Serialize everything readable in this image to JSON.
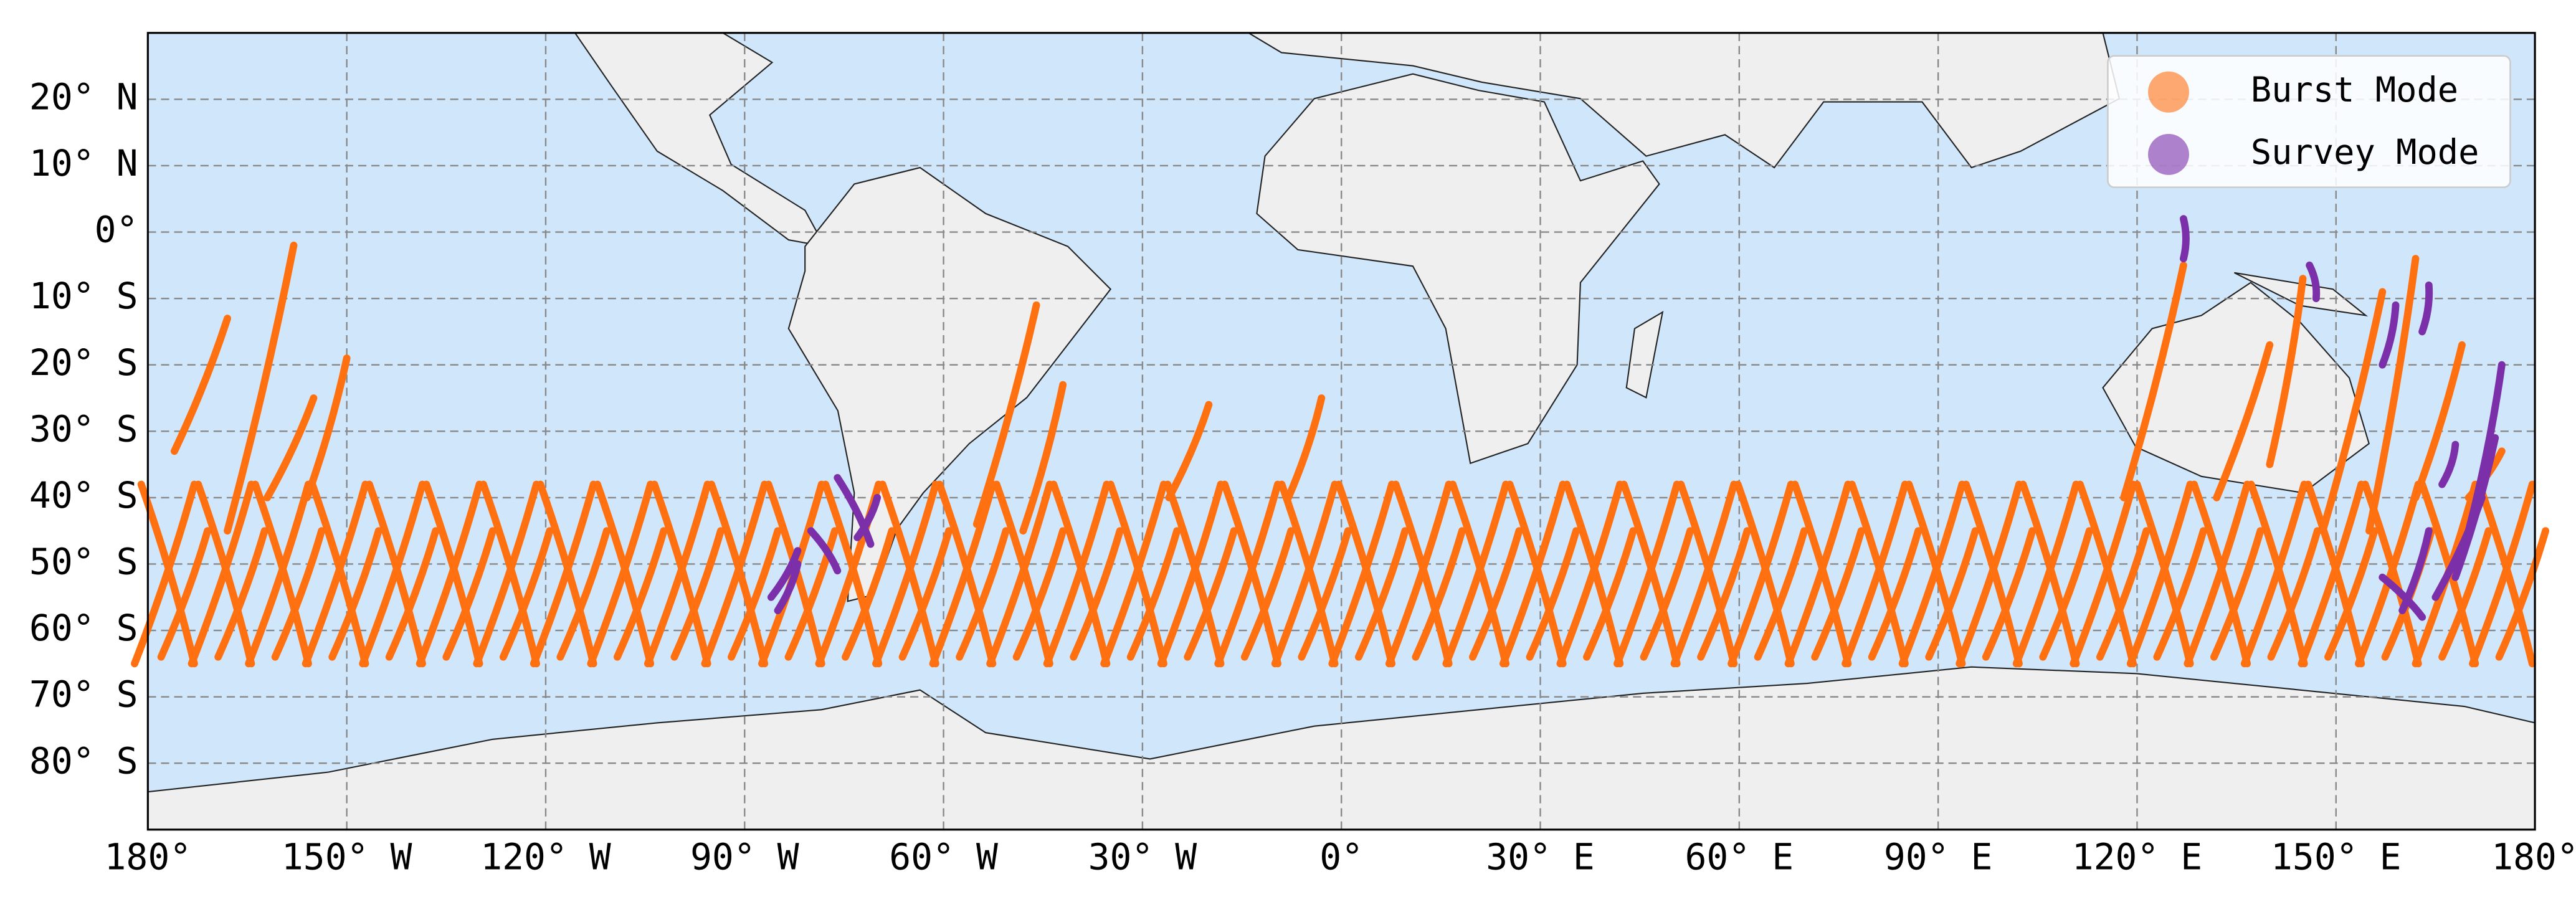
{
  "chart_data": {
    "type": "map",
    "xlim": [
      -180,
      180
    ],
    "ylim": [
      -90,
      30
    ],
    "xticks": [
      {
        "value": -180,
        "label": "180°"
      },
      {
        "value": -150,
        "label": "150° W"
      },
      {
        "value": -120,
        "label": "120° W"
      },
      {
        "value": -90,
        "label": "90° W"
      },
      {
        "value": -60,
        "label": "60° W"
      },
      {
        "value": -30,
        "label": "30° W"
      },
      {
        "value": 0,
        "label": "0°"
      },
      {
        "value": 30,
        "label": "30° E"
      },
      {
        "value": 60,
        "label": "60° E"
      },
      {
        "value": 90,
        "label": "90° E"
      },
      {
        "value": 120,
        "label": "120° E"
      },
      {
        "value": 150,
        "label": "150° E"
      },
      {
        "value": 180,
        "label": "180°"
      }
    ],
    "yticks": [
      {
        "value": 20,
        "label": "20° N"
      },
      {
        "value": 10,
        "label": "10° N"
      },
      {
        "value": 0,
        "label": "0°"
      },
      {
        "value": -10,
        "label": "10° S"
      },
      {
        "value": -20,
        "label": "20° S"
      },
      {
        "value": -30,
        "label": "30° S"
      },
      {
        "value": -40,
        "label": "40° S"
      },
      {
        "value": -50,
        "label": "50° S"
      },
      {
        "value": -60,
        "label": "60° S"
      },
      {
        "value": -70,
        "label": "70° S"
      },
      {
        "value": -80,
        "label": "80° S"
      }
    ],
    "grid": true,
    "legend": "upper right",
    "series": [
      {
        "name": "Burst Mode",
        "color": "#ff7010"
      },
      {
        "name": "Survey Mode",
        "color": "#7b2fa8"
      }
    ]
  }
}
